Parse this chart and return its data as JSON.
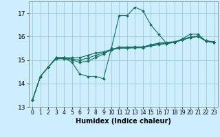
{
  "title": "",
  "xlabel": "Humidex (Indice chaleur)",
  "background_color": "#cceeff",
  "line_color": "#1a6e5e",
  "grid_color": "#99cccc",
  "xlim": [
    -0.5,
    23.5
  ],
  "ylim": [
    13,
    17.5
  ],
  "yticks": [
    13,
    14,
    15,
    16,
    17
  ],
  "xticks": [
    0,
    1,
    2,
    3,
    4,
    5,
    6,
    7,
    8,
    9,
    10,
    11,
    12,
    13,
    14,
    15,
    16,
    17,
    18,
    19,
    20,
    21,
    22,
    23
  ],
  "lines": [
    [
      13.3,
      14.3,
      14.7,
      15.1,
      15.1,
      14.9,
      14.4,
      14.3,
      14.3,
      14.2,
      15.5,
      16.9,
      16.9,
      17.25,
      17.1,
      16.5,
      16.1,
      15.7,
      15.75,
      15.9,
      16.1,
      16.1,
      15.8,
      15.75
    ],
    [
      13.3,
      14.3,
      14.7,
      15.05,
      15.05,
      15.0,
      14.9,
      14.95,
      15.1,
      15.25,
      15.45,
      15.5,
      15.5,
      15.52,
      15.52,
      15.6,
      15.65,
      15.7,
      15.75,
      15.85,
      15.95,
      16.0,
      15.8,
      15.75
    ],
    [
      13.3,
      14.3,
      14.7,
      15.1,
      15.1,
      15.1,
      15.1,
      15.2,
      15.3,
      15.35,
      15.45,
      15.55,
      15.55,
      15.56,
      15.56,
      15.65,
      15.72,
      15.75,
      15.78,
      15.88,
      15.98,
      16.02,
      15.82,
      15.78
    ],
    [
      13.3,
      14.3,
      14.7,
      15.07,
      15.07,
      15.05,
      15.0,
      15.08,
      15.2,
      15.3,
      15.42,
      15.52,
      15.52,
      15.54,
      15.54,
      15.62,
      15.68,
      15.72,
      15.76,
      15.86,
      15.96,
      16.01,
      15.81,
      15.76
    ]
  ]
}
